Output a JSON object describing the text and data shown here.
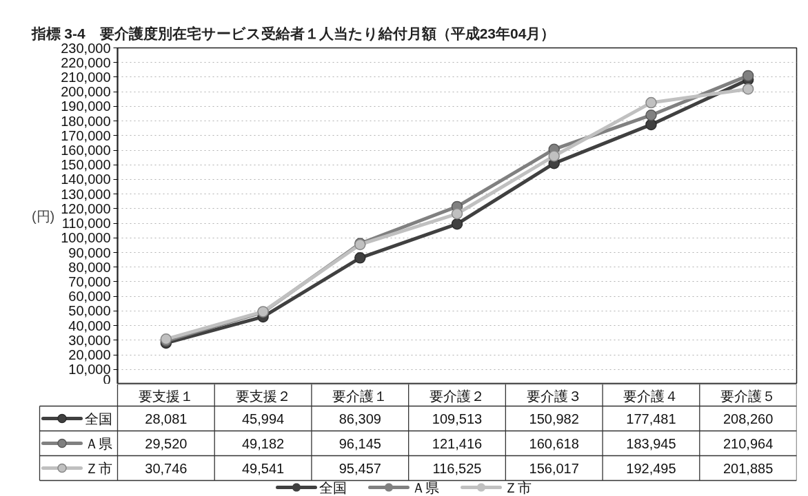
{
  "chart_data": {
    "type": "line",
    "title": "指標 3-4　要介護度別在宅サービス受給者１人当たり給付月額（平成23年04月）",
    "ylabel": "(円)",
    "categories": [
      "要支援１",
      "要支援２",
      "要介護１",
      "要介護２",
      "要介護３",
      "要介護４",
      "要介護５"
    ],
    "series": [
      {
        "name": "全国",
        "color": "#404040",
        "values": [
          28081,
          45994,
          86309,
          109513,
          150982,
          177481,
          208260
        ],
        "value_labels": [
          "28,081",
          "45,994",
          "86,309",
          "109,513",
          "150,982",
          "177,481",
          "208,260"
        ]
      },
      {
        "name": "Ａ県",
        "color": "#808080",
        "values": [
          29520,
          49182,
          96145,
          121416,
          160618,
          183945,
          210964
        ],
        "value_labels": [
          "29,520",
          "49,182",
          "96,145",
          "121,416",
          "160,618",
          "183,945",
          "210,964"
        ]
      },
      {
        "name": "Ｚ市",
        "color": "#c0c0c0",
        "values": [
          30746,
          49541,
          95457,
          116525,
          156017,
          192495,
          201885
        ],
        "value_labels": [
          "30,746",
          "49,541",
          "95,457",
          "116,525",
          "156,017",
          "192,495",
          "201,885"
        ]
      }
    ],
    "ylim": [
      0,
      230000
    ],
    "yticks": [
      {
        "value": 0,
        "label": "0"
      },
      {
        "value": 10000,
        "label": "10,000"
      },
      {
        "value": 20000,
        "label": "20,000"
      },
      {
        "value": 30000,
        "label": "30,000"
      },
      {
        "value": 40000,
        "label": "40,000"
      },
      {
        "value": 50000,
        "label": "50,000"
      },
      {
        "value": 60000,
        "label": "60,000"
      },
      {
        "value": 70000,
        "label": "70,000"
      },
      {
        "value": 80000,
        "label": "80,000"
      },
      {
        "value": 90000,
        "label": "90,000"
      },
      {
        "value": 100000,
        "label": "100,000"
      },
      {
        "value": 110000,
        "label": "110,000"
      },
      {
        "value": 120000,
        "label": "120,000"
      },
      {
        "value": 130000,
        "label": "130,000"
      },
      {
        "value": 140000,
        "label": "140,000"
      },
      {
        "value": 150000,
        "label": "150,000"
      },
      {
        "value": 160000,
        "label": "160,000"
      },
      {
        "value": 170000,
        "label": "170,000"
      },
      {
        "value": 180000,
        "label": "180,000"
      },
      {
        "value": 190000,
        "label": "190,000"
      },
      {
        "value": 200000,
        "label": "200,000"
      },
      {
        "value": 210000,
        "label": "210,000"
      },
      {
        "value": 220000,
        "label": "220,000"
      },
      {
        "value": 230000,
        "label": "230,000"
      }
    ],
    "grid": "y",
    "legend": "bottom",
    "marker": "circle"
  }
}
